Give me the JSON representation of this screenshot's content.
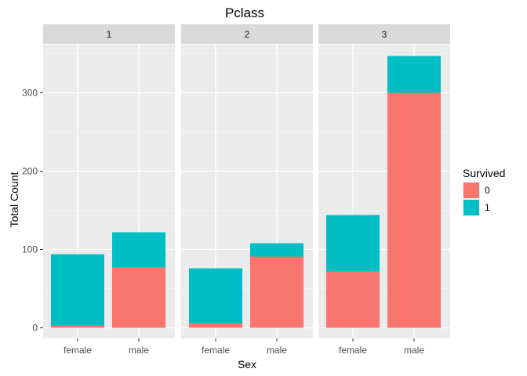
{
  "chart_data": {
    "type": "bar",
    "stacked": true,
    "title": "Pclass",
    "xlabel": "Sex",
    "ylabel": "Total Count",
    "facet_var": "Pclass",
    "facets": [
      "1",
      "2",
      "3"
    ],
    "categories": [
      "female",
      "male"
    ],
    "ylim": [
      0,
      365
    ],
    "yticks": [
      0,
      100,
      200,
      300
    ],
    "grid": true,
    "legend": {
      "title": "Survived",
      "position": "right"
    },
    "series": [
      {
        "name": "0",
        "color": "#F8766D",
        "values": [
          [
            3,
            77
          ],
          [
            6,
            91
          ],
          [
            72,
            300
          ]
        ]
      },
      {
        "name": "1",
        "color": "#00BFC4",
        "values": [
          [
            91,
            45
          ],
          [
            70,
            17
          ],
          [
            72,
            47
          ]
        ]
      }
    ]
  }
}
